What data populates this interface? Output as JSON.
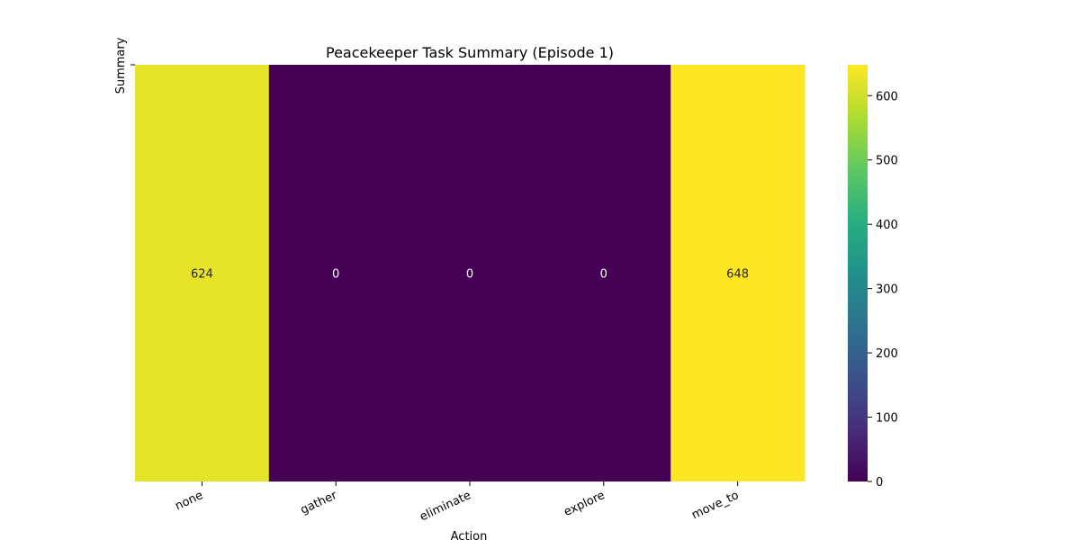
{
  "chart_data": {
    "type": "heatmap",
    "title": "Peacekeeper Task Summary (Episode 1)",
    "xlabel": "Action",
    "ylabel": "Summary",
    "categories": [
      "none",
      "gather",
      "eliminate",
      "explore",
      "move_to"
    ],
    "values": [
      624,
      0,
      0,
      0,
      648
    ],
    "colormap": "viridis",
    "colorbar": {
      "range": [
        0,
        648
      ],
      "ticks": [
        0,
        100,
        200,
        300,
        400,
        500,
        600
      ]
    },
    "annotations": [
      "624",
      "0",
      "0",
      "0",
      "648"
    ],
    "grid": false
  }
}
